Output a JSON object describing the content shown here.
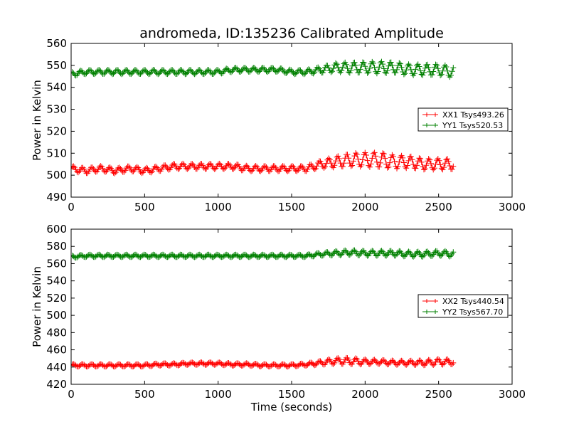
{
  "figure": {
    "title": "andromeda, ID:135236 Calibrated Amplitude",
    "xlabel": "Time (seconds)"
  },
  "chart_data": [
    {
      "type": "line",
      "ylabel": "Power in Kelvin",
      "xlim": [
        0,
        3000
      ],
      "ylim": [
        490,
        560
      ],
      "xticks": [
        0,
        500,
        1000,
        1500,
        2000,
        2500,
        3000
      ],
      "yticks": [
        490,
        500,
        510,
        520,
        530,
        540,
        550,
        560
      ],
      "legend_position": "center-right",
      "marker": "+",
      "series": [
        {
          "name": "XX1 Tsys493.26",
          "color": "#ff0000",
          "x": [
            0,
            100,
            200,
            300,
            400,
            500,
            600,
            700,
            800,
            900,
            1000,
            1100,
            1200,
            1300,
            1400,
            1500,
            1600,
            1700,
            1800,
            1900,
            2000,
            2100,
            2200,
            2300,
            2400,
            2500,
            2600
          ],
          "y": [
            503,
            502,
            503,
            502,
            503,
            502,
            503,
            504,
            504,
            504,
            504,
            504,
            503,
            503,
            503,
            503,
            503,
            505,
            506,
            507,
            507,
            507,
            506,
            506,
            505,
            505,
            505
          ],
          "amplitude": [
            2.5,
            2.5,
            2.5,
            2.5,
            2.5,
            2.5,
            2.5,
            2.5,
            2.5,
            2.5,
            2.5,
            2.5,
            2.5,
            2.5,
            2.5,
            2.5,
            2.5,
            3.5,
            5,
            6,
            6.5,
            7,
            6,
            5.5,
            5,
            5,
            5
          ]
        },
        {
          "name": "YY1 Tsys520.53",
          "color": "#008000",
          "x": [
            0,
            100,
            200,
            300,
            400,
            500,
            600,
            700,
            800,
            900,
            1000,
            1100,
            1200,
            1300,
            1400,
            1500,
            1600,
            1700,
            1800,
            1900,
            2000,
            2100,
            2200,
            2300,
            2400,
            2500,
            2600
          ],
          "y": [
            546,
            547,
            547,
            547,
            547,
            547,
            547,
            547,
            547,
            547,
            547,
            548,
            548,
            548,
            548,
            547,
            547,
            548,
            549,
            549,
            549,
            549,
            549,
            548,
            548,
            548,
            547
          ],
          "amplitude": [
            2,
            2,
            2,
            2,
            2,
            2,
            2,
            2,
            2,
            2,
            2,
            2,
            2,
            2,
            2,
            2,
            2,
            3,
            4,
            5,
            5,
            5.5,
            5,
            5,
            5,
            5,
            5
          ]
        }
      ]
    },
    {
      "type": "line",
      "ylabel": "Power in Kelvin",
      "xlabel": "Time (seconds)",
      "xlim": [
        0,
        3000
      ],
      "ylim": [
        420,
        600
      ],
      "xticks": [
        0,
        500,
        1000,
        1500,
        2000,
        2500,
        3000
      ],
      "yticks": [
        420,
        440,
        460,
        480,
        500,
        520,
        540,
        560,
        580,
        600
      ],
      "legend_position": "center-right",
      "marker": "+",
      "series": [
        {
          "name": "XX2 Tsys440.54",
          "color": "#ff0000",
          "x": [
            0,
            100,
            200,
            300,
            400,
            500,
            600,
            700,
            800,
            900,
            1000,
            1100,
            1200,
            1300,
            1400,
            1500,
            1600,
            1700,
            1800,
            1900,
            2000,
            2100,
            2200,
            2300,
            2400,
            2500,
            2600
          ],
          "y": [
            442,
            442,
            442,
            442,
            442,
            442,
            443,
            443,
            444,
            444,
            444,
            443,
            443,
            442,
            442,
            442,
            443,
            445,
            447,
            447,
            446,
            446,
            445,
            445,
            445,
            446,
            446
          ],
          "amplitude": [
            3,
            3,
            3,
            3,
            3,
            3,
            3,
            3,
            3,
            3,
            3,
            3,
            3,
            3,
            3,
            3,
            3,
            5,
            7,
            8,
            6,
            5,
            5,
            5,
            6,
            7,
            6
          ]
        },
        {
          "name": "YY2 Tsys567.70",
          "color": "#008000",
          "x": [
            0,
            100,
            200,
            300,
            400,
            500,
            600,
            700,
            800,
            900,
            1000,
            1100,
            1200,
            1300,
            1400,
            1500,
            1600,
            1700,
            1800,
            1900,
            2000,
            2100,
            2200,
            2300,
            2400,
            2500,
            2600
          ],
          "y": [
            568,
            569,
            569,
            569,
            569,
            569,
            569,
            569,
            569,
            569,
            569,
            569,
            569,
            569,
            569,
            569,
            569,
            571,
            572,
            573,
            572,
            572,
            572,
            571,
            571,
            572,
            571
          ],
          "amplitude": [
            3,
            3,
            3,
            3,
            3,
            3,
            3,
            3,
            3,
            3,
            3,
            3,
            3,
            3,
            3,
            3,
            3,
            4,
            5,
            6,
            6,
            6,
            6,
            6,
            6,
            6,
            6
          ]
        }
      ]
    }
  ]
}
